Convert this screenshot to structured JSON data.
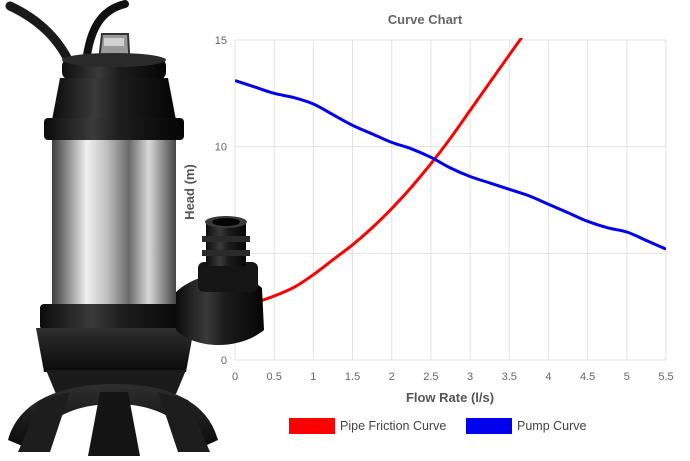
{
  "chart_data": {
    "type": "line",
    "title": "Curve Chart",
    "xlabel": "Flow Rate (l/s)",
    "ylabel": "Head (m)",
    "xlim": [
      0,
      5.5
    ],
    "ylim": [
      0,
      15
    ],
    "x_ticks": [
      "0",
      "0.5",
      "1",
      "1.5",
      "2",
      "2.5",
      "3",
      "3.5",
      "4",
      "4.5",
      "5",
      "5.5"
    ],
    "y_ticks": [
      "0",
      "5",
      "10",
      "15"
    ],
    "grid": true,
    "legend_position": "bottom",
    "series": [
      {
        "name": "Pipe Friction Curve",
        "color": "#ff0000",
        "x": [
          0,
          0.25,
          0.5,
          0.75,
          1.0,
          1.25,
          1.5,
          1.75,
          2.0,
          2.25,
          2.5,
          2.75,
          3.0,
          3.25,
          3.5,
          3.75,
          3.9
        ],
        "y": [
          2.6,
          2.7,
          3.0,
          3.4,
          4.0,
          4.7,
          5.4,
          6.2,
          7.1,
          8.1,
          9.2,
          10.4,
          11.7,
          13.0,
          14.3,
          15.6,
          16.5
        ]
      },
      {
        "name": "Pump Curve",
        "color": "#0000ee",
        "x": [
          0,
          0.25,
          0.5,
          0.75,
          1.0,
          1.25,
          1.5,
          1.75,
          2.0,
          2.25,
          2.5,
          2.75,
          3.0,
          3.25,
          3.5,
          3.75,
          4.0,
          4.25,
          4.5,
          4.75,
          5.0,
          5.25,
          5.5
        ],
        "y": [
          13.1,
          12.8,
          12.5,
          12.3,
          12.0,
          11.5,
          11.0,
          10.6,
          10.2,
          9.9,
          9.5,
          9.0,
          8.6,
          8.3,
          8.0,
          7.7,
          7.3,
          6.9,
          6.5,
          6.2,
          6.0,
          5.6,
          5.2
        ]
      }
    ]
  },
  "image": {
    "icon": "submersible-pump-icon"
  }
}
